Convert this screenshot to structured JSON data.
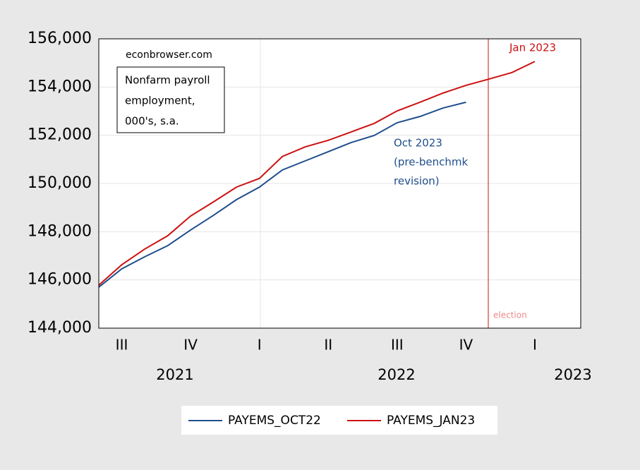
{
  "chart_data": {
    "type": "line",
    "categories": [
      null,
      "III",
      null,
      null,
      "IV",
      null,
      null,
      "I",
      null,
      null,
      "II",
      null,
      null,
      "III",
      null,
      null,
      "IV",
      null,
      null,
      "I",
      null,
      null
    ],
    "year_labels": [
      "2021",
      "2022",
      "2023"
    ],
    "series": [
      {
        "name": "PAYEMS_OCT22",
        "color": "#1f4e8c",
        "values": [
          145700,
          146460,
          146960,
          147420,
          148070,
          148680,
          149330,
          149850,
          150560,
          150940,
          151320,
          151700,
          151990,
          152520,
          152780,
          153130,
          153370,
          null,
          null,
          null,
          null,
          null
        ]
      },
      {
        "name": "PAYEMS_JAN23",
        "color": "#cc1111",
        "values": [
          145780,
          146630,
          147280,
          147830,
          148650,
          149240,
          149850,
          150210,
          151120,
          151520,
          151790,
          152140,
          152490,
          153010,
          153370,
          153750,
          154070,
          154330,
          154600,
          155060,
          null,
          null
        ]
      }
    ],
    "ylim": [
      144000,
      156000
    ],
    "yticks": [
      {
        "value": 144000,
        "label": "144,000"
      },
      {
        "value": 146000,
        "label": "146,000"
      },
      {
        "value": 148000,
        "label": "148,000"
      },
      {
        "value": 150000,
        "label": "150,000"
      },
      {
        "value": 152000,
        "label": "152,000"
      },
      {
        "value": 154000,
        "label": "154,000"
      },
      {
        "value": 156000,
        "label": "156,000"
      }
    ],
    "grid": true,
    "annotations": {
      "source": "econbrowser.com",
      "box": [
        "Nonfarm payroll",
        "employment,",
        "000's, s.a."
      ],
      "oct": [
        "Oct 2023",
        "(pre-benchmk",
        "revision)"
      ],
      "jan": "Jan 2023",
      "election": "election"
    }
  }
}
